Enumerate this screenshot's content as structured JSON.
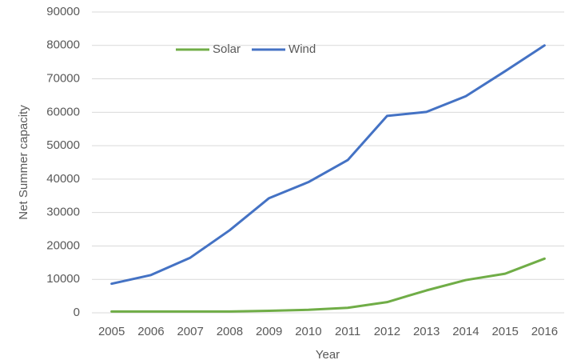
{
  "chart_data": {
    "type": "line",
    "x_label": "Year",
    "y_label": "Net Summer capacity",
    "categories": [
      "2005",
      "2006",
      "2007",
      "2008",
      "2009",
      "2010",
      "2011",
      "2012",
      "2013",
      "2014",
      "2015",
      "2016"
    ],
    "series": [
      {
        "name": "Solar",
        "color": "#70ad47",
        "values": [
          400,
          400,
          400,
          400,
          600,
          900,
          1500,
          3200,
          6700,
          9800,
          11700,
          16200
        ]
      },
      {
        "name": "Wind",
        "color": "#4472c4",
        "values": [
          8700,
          11300,
          16500,
          24700,
          34300,
          39100,
          45700,
          58900,
          60100,
          64800,
          72300,
          80000
        ]
      }
    ],
    "ylim": [
      0,
      90000
    ],
    "yticks": [
      0,
      10000,
      20000,
      30000,
      40000,
      50000,
      60000,
      70000,
      80000,
      90000
    ],
    "grid": true,
    "legend": "top"
  }
}
